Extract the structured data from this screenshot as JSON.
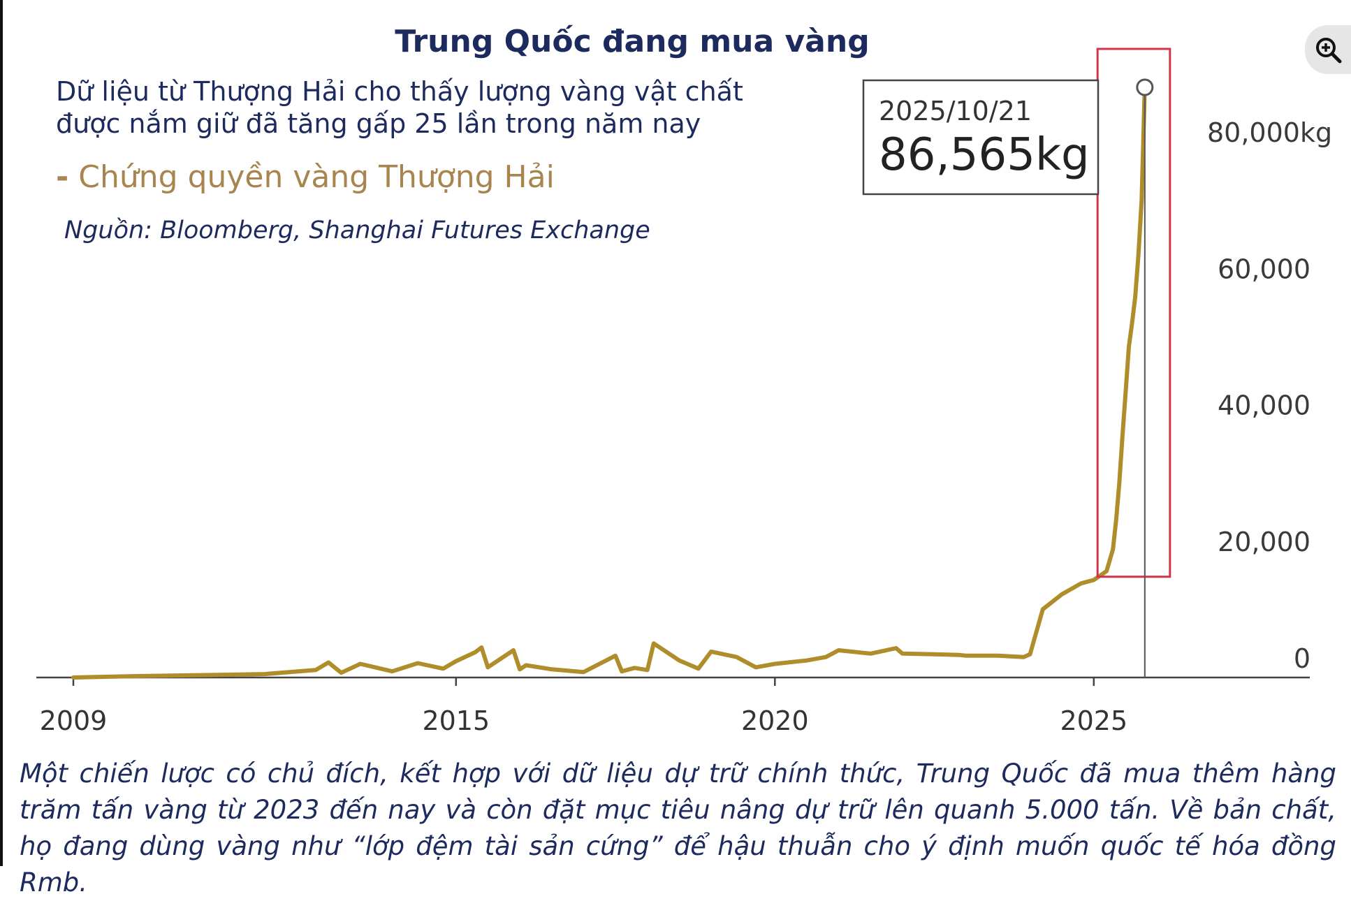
{
  "header": {
    "title": "Trung Quốc đang mua vàng",
    "subtitle_line1": "Dữ liệu từ Thượng Hải cho thấy lượng vàng vật chất",
    "subtitle_line2": "được nắm giữ đã tăng gấp 25 lần trong năm nay",
    "legend_label": "Chứng quyền vàng Thượng Hải",
    "source": "Nguồn: Bloomberg, Shanghai Futures Exchange"
  },
  "toolbar": {
    "zoom_icon": "zoom-in-icon"
  },
  "caption": "Một chiến lược có chủ đích, kết hợp với dữ liệu dự trữ chính thức, Trung Quốc đã mua thêm hàng trăm tấn vàng từ 2023 đến nay và còn đặt mục tiêu nâng dự trữ lên quanh 5.000 tấn. Về bản chất, họ đang dùng vàng như “lớp đệm tài sản cứng” để hậu thuẫn cho ý định muốn quốc tế hóa đồng Rmb.",
  "colors": {
    "series": "#b08d2b",
    "highlight_box": "#d2334a",
    "title": "#1c2a5e",
    "legend": "#a8844e"
  },
  "chart_data": {
    "type": "line",
    "title": "Trung Quốc đang mua vàng",
    "xlabel": "",
    "ylabel": "",
    "x_ticks": [
      "2009",
      "2015",
      "2020",
      "2025"
    ],
    "y_ticks": [
      "0",
      "20,000",
      "40,000",
      "60,000",
      "80,000kg"
    ],
    "xlim": [
      2009.0,
      2026.8
    ],
    "ylim": [
      0,
      86565
    ],
    "series": [
      {
        "name": "Chứng quyền vàng Thượng Hải",
        "x": [
          2009.0,
          2010.0,
          2011.0,
          2012.0,
          2012.8,
          2013.0,
          2013.2,
          2013.5,
          2014.0,
          2014.4,
          2014.8,
          2015.0,
          2015.3,
          2015.4,
          2015.5,
          2015.9,
          2016.0,
          2016.1,
          2016.5,
          2017.0,
          2017.5,
          2017.6,
          2017.8,
          2018.0,
          2018.1,
          2018.5,
          2018.8,
          2019.0,
          2019.4,
          2019.7,
          2020.0,
          2020.5,
          2020.8,
          2021.0,
          2021.5,
          2021.9,
          2022.0,
          2022.5,
          2022.9,
          2023.0,
          2023.5,
          2023.9,
          2024.0,
          2024.2,
          2024.5,
          2024.8,
          2025.0,
          2025.2,
          2025.3,
          2025.35,
          2025.4,
          2025.45,
          2025.5,
          2025.55,
          2025.6,
          2025.65,
          2025.7,
          2025.75,
          2025.8
        ],
        "values": [
          0,
          200,
          350,
          500,
          1100,
          2200,
          700,
          2000,
          900,
          2100,
          1300,
          2400,
          3700,
          4400,
          1500,
          4000,
          1200,
          1800,
          1200,
          800,
          3200,
          900,
          1400,
          1100,
          5000,
          2500,
          1300,
          3800,
          3000,
          1500,
          2000,
          2500,
          3000,
          4000,
          3500,
          4300,
          3500,
          3400,
          3300,
          3200,
          3200,
          3000,
          3400,
          10000,
          12200,
          13800,
          14300,
          15600,
          18800,
          23100,
          28500,
          35500,
          42000,
          48500,
          52000,
          55800,
          62000,
          70000,
          86565
        ]
      }
    ],
    "annotation": {
      "date": "2025/10/21",
      "value_label": "86,565kg",
      "x": 2025.8,
      "y": 86565
    },
    "highlight_range": {
      "x": [
        2025.3,
        2025.8
      ],
      "y": [
        15600,
        86565
      ]
    },
    "grid": false,
    "legend_position": "top-left"
  }
}
